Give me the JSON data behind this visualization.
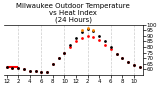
{
  "title": "Milwaukee Outdoor Temperature\nvs Heat Index\n(24 Hours)",
  "bg_color": "#ffffff",
  "plot_bg": "#ffffff",
  "grid_color": "#cccccc",
  "temp_color": "#ff0000",
  "heat_color": "#000000",
  "orange_color": "#ff8800",
  "x_hours": [
    0,
    1,
    2,
    3,
    4,
    5,
    6,
    7,
    8,
    9,
    10,
    11,
    12,
    13,
    14,
    15,
    16,
    17,
    18,
    19,
    20,
    21,
    22,
    23
  ],
  "temperature": [
    62,
    61,
    61,
    60,
    59,
    59,
    58,
    58,
    65,
    70,
    75,
    80,
    85,
    88,
    90,
    89,
    86,
    82,
    78,
    74,
    70,
    67,
    64,
    62
  ],
  "heat_index": [
    62,
    61,
    61,
    60,
    59,
    59,
    58,
    58,
    65,
    70,
    75,
    82,
    88,
    93,
    96,
    94,
    90,
    85,
    80,
    74,
    70,
    67,
    64,
    62
  ],
  "ylim": [
    55,
    100
  ],
  "yticks": [
    60,
    65,
    70,
    75,
    80,
    85,
    90,
    95,
    100
  ],
  "xtick_pos": [
    0,
    2,
    4,
    6,
    8,
    10,
    12,
    14,
    16,
    18,
    20,
    22
  ],
  "xtick_labels": [
    "12",
    "2",
    "4",
    "6",
    "8",
    "10",
    "12",
    "2",
    "4",
    "6",
    "8",
    "10"
  ],
  "title_fontsize": 5,
  "tick_fontsize": 4,
  "marker_size": 2,
  "line_width": 1.5,
  "red_line_x": [
    0,
    2
  ],
  "red_line_y": [
    62,
    62
  ],
  "dashed_positions": [
    2,
    6,
    10,
    14,
    18,
    22
  ],
  "orange_peak_hours": [
    13,
    14,
    15
  ],
  "orange_peak_vals": [
    95,
    97,
    95
  ]
}
